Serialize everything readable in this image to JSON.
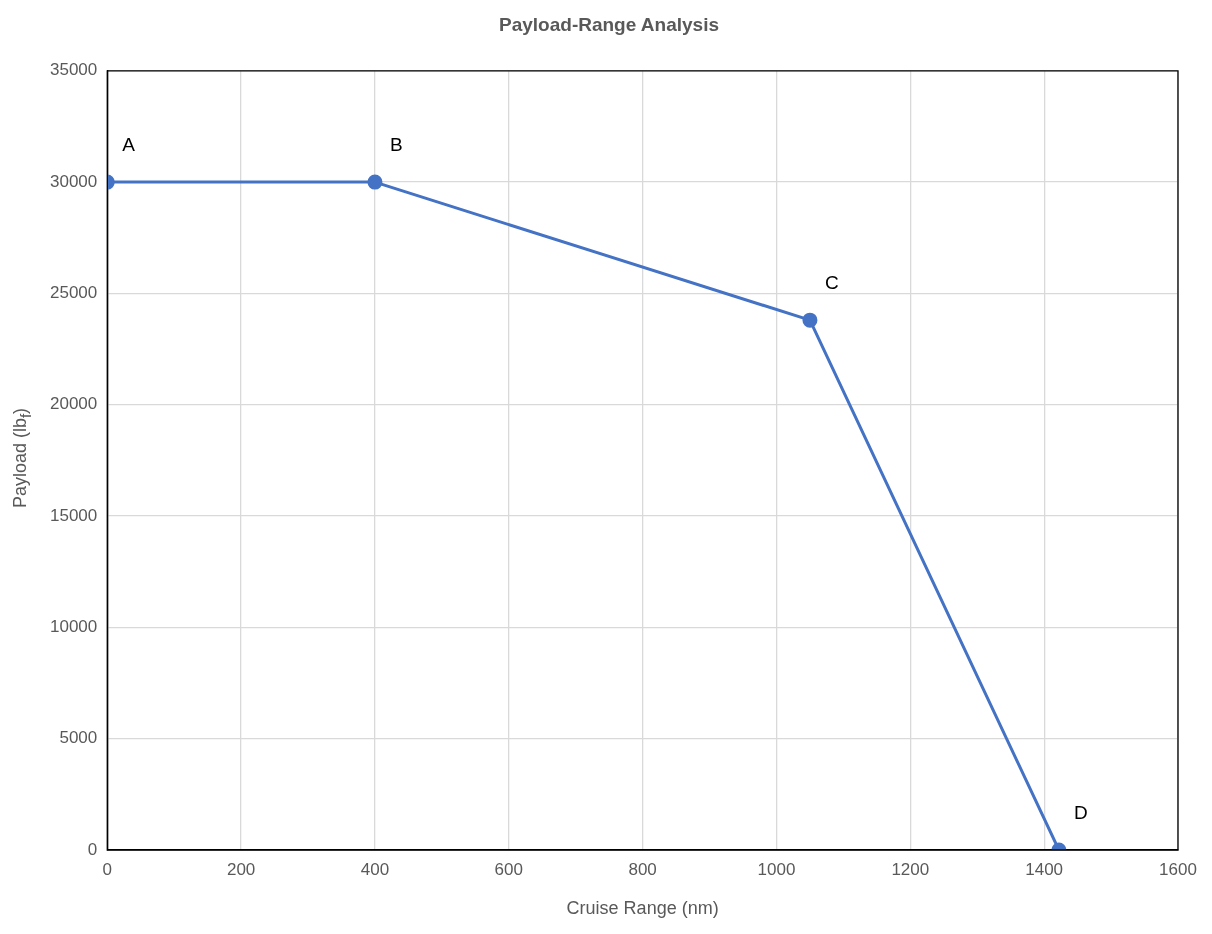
{
  "chart_data": {
    "type": "line",
    "title": "Payload-Range Analysis",
    "xlabel": "Cruise Range (nm)",
    "ylabel": "Payload (lb$_{f}$)",
    "series": [
      {
        "color": "#4472c4",
        "x": [
          0,
          400,
          1050,
          1422
        ],
        "values": [
          30000,
          30000,
          23800,
          0
        ]
      }
    ],
    "annotations": [
      {
        "text": "A",
        "x": 0,
        "y": 30000
      },
      {
        "text": "B",
        "x": 400,
        "y": 30000
      },
      {
        "text": "C",
        "x": 1050,
        "y": 23800
      },
      {
        "text": "D",
        "x": 1422,
        "y": 0
      }
    ],
    "xlim": [
      0,
      1600
    ],
    "xticks": [
      0,
      200,
      400,
      600,
      800,
      1000,
      1200,
      1400,
      1600
    ],
    "ylim": [
      0,
      35000
    ],
    "yticks": [
      0,
      5000,
      10000,
      15000,
      20000,
      25000,
      30000,
      35000
    ],
    "grid": true,
    "legend": false,
    "marker": "circle",
    "line_style": "solid"
  }
}
